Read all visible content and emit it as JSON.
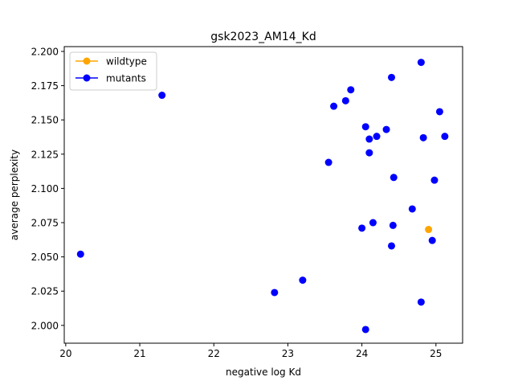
{
  "chart_data": {
    "type": "scatter",
    "title": "gsk2023_AM14_Kd",
    "xlabel": "negative log Kd",
    "ylabel": "average perplexity",
    "xlim": [
      19.98,
      25.36
    ],
    "ylim": [
      1.987,
      2.2035
    ],
    "xticks": [
      20,
      21,
      22,
      23,
      24,
      25
    ],
    "yticks": [
      2.0,
      2.025,
      2.05,
      2.075,
      2.1,
      2.125,
      2.15,
      2.175,
      2.2
    ],
    "legend": "top-left",
    "grid": false,
    "series": [
      {
        "name": "wildtype",
        "color": "#ffa500",
        "points": [
          [
            24.9,
            2.07
          ]
        ]
      },
      {
        "name": "mutants",
        "color": "#0000ff",
        "points": [
          [
            20.2,
            2.052
          ],
          [
            21.3,
            2.168
          ],
          [
            22.82,
            2.024
          ],
          [
            23.2,
            2.033
          ],
          [
            23.55,
            2.119
          ],
          [
            23.62,
            2.16
          ],
          [
            23.78,
            2.164
          ],
          [
            23.85,
            2.172
          ],
          [
            24.0,
            2.071
          ],
          [
            24.05,
            2.145
          ],
          [
            24.05,
            1.997
          ],
          [
            24.1,
            2.136
          ],
          [
            24.1,
            2.126
          ],
          [
            24.15,
            2.075
          ],
          [
            24.2,
            2.138
          ],
          [
            24.33,
            2.143
          ],
          [
            24.4,
            2.181
          ],
          [
            24.4,
            2.058
          ],
          [
            24.42,
            2.073
          ],
          [
            24.43,
            2.108
          ],
          [
            24.68,
            2.085
          ],
          [
            24.8,
            2.192
          ],
          [
            24.8,
            2.017
          ],
          [
            24.83,
            2.137
          ],
          [
            24.95,
            2.062
          ],
          [
            24.98,
            2.106
          ],
          [
            25.05,
            2.156
          ],
          [
            25.12,
            2.138
          ]
        ]
      }
    ]
  }
}
